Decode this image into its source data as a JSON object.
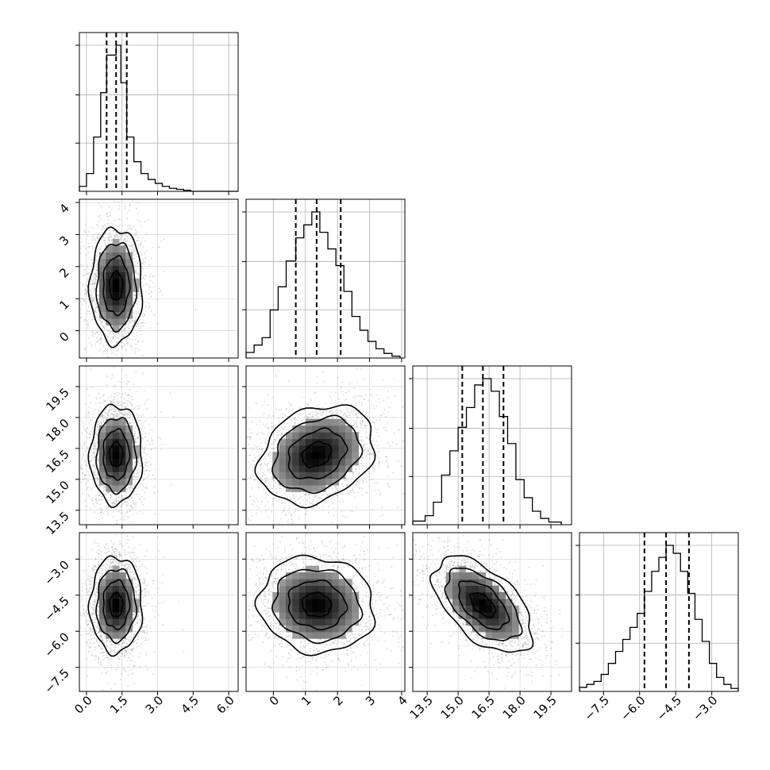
{
  "chart_data": {
    "type": "corner",
    "grid": true,
    "n_params": 4,
    "parameters": [
      {
        "xlim": [
          -0.3,
          6.4
        ],
        "x_ticks": [
          "0.0",
          "1.5",
          "3.0",
          "4.5",
          "6.0"
        ],
        "y_ticks": [],
        "quantiles": [
          0.85,
          1.25,
          1.7
        ]
      },
      {
        "xlim": [
          -0.85,
          4.1
        ],
        "x_ticks": [
          "0",
          "1",
          "2",
          "3",
          "4"
        ],
        "y_ticks": [
          "0",
          "1",
          "2",
          "3",
          "4"
        ],
        "quantiles": [
          0.7,
          1.35,
          2.1
        ]
      },
      {
        "xlim": [
          12.8,
          20.5
        ],
        "x_ticks": [
          "13.5",
          "15.0",
          "16.5",
          "18.0",
          "19.5"
        ],
        "y_ticks": [
          "13.5",
          "15.0",
          "16.5",
          "18.0",
          "19.5"
        ],
        "quantiles": [
          15.2,
          16.2,
          17.2
        ]
      },
      {
        "xlim": [
          -8.5,
          -1.9
        ],
        "x_ticks": [
          "−7.5",
          "−6.0",
          "−4.5",
          "−3.0"
        ],
        "y_ticks": [
          "−7.5",
          "−6.0",
          "−4.5",
          "−3.0"
        ],
        "quantiles": [
          -5.8,
          -4.9,
          -3.95
        ]
      }
    ],
    "histograms": [
      {
        "param": 0,
        "bin_edges": [
          -0.3,
          0.0,
          0.3,
          0.6,
          0.85,
          1.0,
          1.25,
          1.45,
          1.7,
          2.0,
          2.3,
          2.6,
          2.9,
          3.2,
          3.5,
          3.8,
          4.1,
          4.4,
          6.4
        ],
        "counts": [
          5,
          18,
          55,
          100,
          138,
          138,
          148,
          110,
          55,
          30,
          18,
          12,
          8,
          5,
          3,
          2,
          1,
          0
        ]
      },
      {
        "param": 1,
        "bin_edges": [
          -0.85,
          -0.6,
          -0.35,
          -0.1,
          0.15,
          0.4,
          0.7,
          0.95,
          1.2,
          1.45,
          1.7,
          1.95,
          2.2,
          2.45,
          2.7,
          2.95,
          3.2,
          3.45,
          3.7,
          3.95
        ],
        "counts": [
          6,
          14,
          22,
          52,
          77,
          105,
          130,
          144,
          158,
          136,
          118,
          100,
          72,
          45,
          30,
          18,
          10,
          5,
          2
        ]
      },
      {
        "param": 2,
        "bin_edges": [
          12.8,
          13.4,
          13.8,
          14.2,
          14.6,
          15.0,
          15.4,
          15.8,
          16.2,
          16.6,
          17.0,
          17.4,
          17.8,
          18.2,
          18.6,
          19.0,
          19.4,
          20.0
        ],
        "counts": [
          4,
          10,
          25,
          55,
          82,
          108,
          130,
          155,
          162,
          148,
          120,
          90,
          50,
          30,
          15,
          7,
          3
        ]
      },
      {
        "param": 3,
        "bin_edges": [
          -8.5,
          -8.2,
          -7.9,
          -7.6,
          -7.3,
          -7.0,
          -6.7,
          -6.4,
          -6.1,
          -5.8,
          -5.5,
          -5.2,
          -4.9,
          -4.6,
          -4.3,
          -4.0,
          -3.7,
          -3.4,
          -3.1,
          -2.8,
          -2.5,
          -2.2,
          -1.9
        ],
        "counts": [
          4,
          7,
          10,
          17,
          28,
          40,
          52,
          64,
          78,
          100,
          120,
          134,
          146,
          138,
          120,
          98,
          72,
          50,
          28,
          14,
          7,
          3
        ]
      }
    ],
    "joint": [
      {
        "x": 0,
        "y": 1,
        "center": [
          1.25,
          1.4
        ],
        "sigma": [
          0.55,
          0.9
        ],
        "rho": 0.0
      },
      {
        "x": 0,
        "y": 2,
        "center": [
          1.25,
          16.2
        ],
        "sigma": [
          0.55,
          1.2
        ],
        "rho": 0.0
      },
      {
        "x": 1,
        "y": 2,
        "center": [
          1.35,
          16.2
        ],
        "sigma": [
          0.9,
          1.2
        ],
        "rho": 0.25
      },
      {
        "x": 0,
        "y": 3,
        "center": [
          1.25,
          -4.9
        ],
        "sigma": [
          0.55,
          1.0
        ],
        "rho": 0.0
      },
      {
        "x": 1,
        "y": 3,
        "center": [
          1.35,
          -4.9
        ],
        "sigma": [
          0.9,
          1.0
        ],
        "rho": -0.08
      },
      {
        "x": 2,
        "y": 3,
        "center": [
          16.2,
          -4.9
        ],
        "sigma": [
          1.2,
          1.0
        ],
        "rho": -0.55
      }
    ],
    "contour_levels": [
      0.5,
      1.0,
      1.5,
      2.0
    ]
  }
}
